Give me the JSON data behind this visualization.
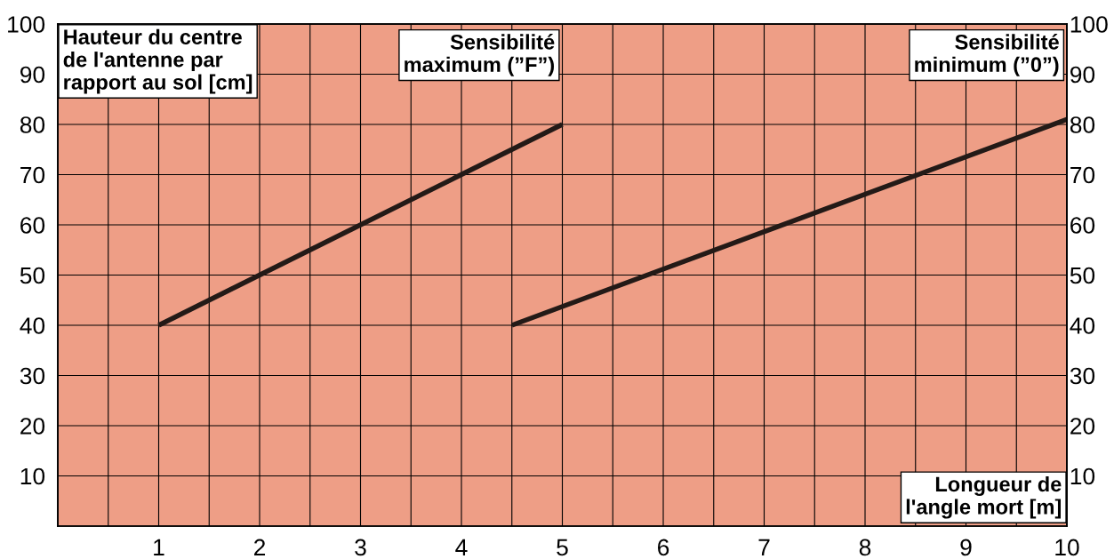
{
  "chart_data": {
    "type": "line",
    "xlabel": "Longueur de\nl'angle mort [m]",
    "ylabel": "Hauteur du centre\nde l'antenne par\nrapport au sol [cm]",
    "series": [
      {
        "name": "Sensibilité\nmaximum (”F”)",
        "color": "#231a17",
        "x": [
          1.0,
          5.0
        ],
        "values": [
          40,
          80
        ]
      },
      {
        "name": "Sensibilité\nminimum (”0”)",
        "color": "#231a17",
        "x": [
          4.5,
          10
        ],
        "values": [
          40,
          81
        ]
      }
    ],
    "xlim": [
      0,
      10
    ],
    "xticks": [
      {
        "value": 0.5,
        "label": null
      },
      1,
      {
        "value": 1.5,
        "label": null
      },
      2,
      {
        "value": 2.5,
        "label": null
      },
      3,
      {
        "value": 3.5,
        "label": null
      },
      4,
      {
        "value": 4.5,
        "label": null
      },
      5,
      {
        "value": 5.5,
        "label": null
      },
      6,
      {
        "value": 6.5,
        "label": null
      },
      7,
      {
        "value": 7.5,
        "label": null
      },
      8,
      {
        "value": 8.5,
        "label": null
      },
      9,
      {
        "value": 9.5,
        "label": null
      },
      10
    ],
    "ylim": [
      0,
      100
    ],
    "yticks": [
      10,
      20,
      30,
      40,
      50,
      60,
      70,
      80,
      90,
      100
    ],
    "y2lim": [
      0,
      100
    ],
    "y2ticks": [
      10,
      20,
      30,
      40,
      50,
      60,
      70,
      80,
      90,
      100
    ],
    "grid": true,
    "legend": false,
    "line_style": "solid"
  }
}
